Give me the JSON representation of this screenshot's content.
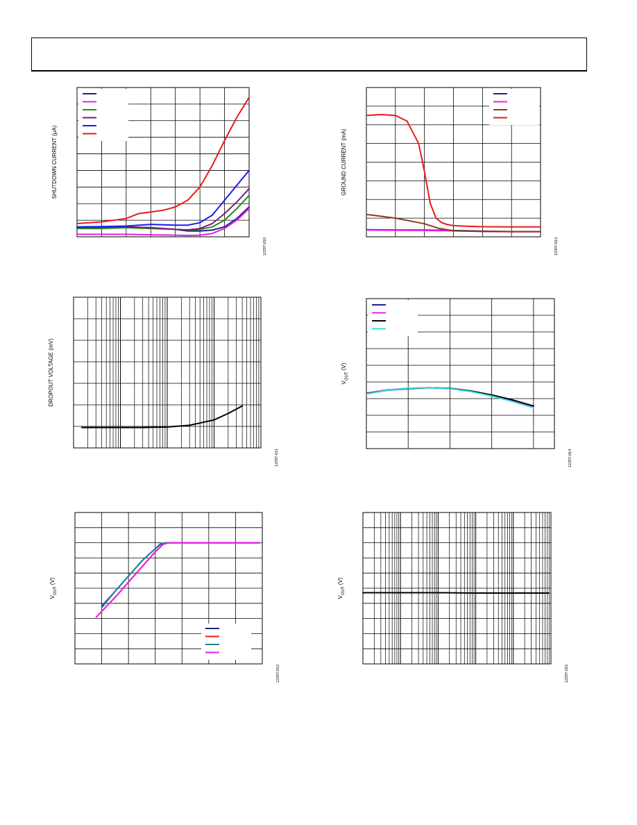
{
  "page": {
    "header_title": ""
  },
  "chart_data": [
    {
      "id": "fig10",
      "type": "line",
      "ylabel": "SHUTDOWN CURRENT (µA)",
      "figure_id": "12297-010",
      "grid": true,
      "xlim": [
        0,
        7
      ],
      "ylim": [
        0,
        9
      ],
      "x_divisions": 7,
      "y_divisions": 9,
      "legend_placement": "top-left",
      "series": [
        {
          "color": "#1f1f8f",
          "x": [
            0,
            1,
            2,
            3,
            4,
            4.5,
            5,
            5.5,
            6,
            6.5,
            7
          ],
          "y": [
            0.55,
            0.55,
            0.6,
            0.55,
            0.45,
            0.35,
            0.35,
            0.4,
            0.6,
            1.1,
            1.8
          ]
        },
        {
          "color": "#e81ee8",
          "x": [
            0,
            1,
            2,
            3,
            4,
            4.5,
            5,
            5.5,
            6,
            6.5,
            7
          ],
          "y": [
            0.15,
            0.15,
            0.15,
            0.12,
            0.1,
            0.08,
            0.1,
            0.2,
            0.5,
            1.0,
            1.7
          ]
        },
        {
          "color": "#218a21",
          "x": [
            0,
            1,
            2,
            3,
            4,
            4.5,
            5,
            5.5,
            6,
            6.5,
            7
          ],
          "y": [
            0.5,
            0.5,
            0.55,
            0.5,
            0.45,
            0.4,
            0.45,
            0.6,
            1.0,
            1.7,
            2.5
          ]
        },
        {
          "color": "#7a1a7a",
          "x": [
            0,
            1,
            2,
            3,
            4,
            4.5,
            5,
            5.5,
            6,
            6.5,
            7
          ],
          "y": [
            0.6,
            0.6,
            0.6,
            0.55,
            0.45,
            0.42,
            0.5,
            0.8,
            1.4,
            2.1,
            2.9
          ]
        },
        {
          "color": "#1a1af0",
          "x": [
            0,
            1,
            2,
            3,
            4,
            4.5,
            5,
            5.5,
            6,
            6.5,
            7
          ],
          "y": [
            0.6,
            0.62,
            0.65,
            0.75,
            0.7,
            0.7,
            0.85,
            1.3,
            2.2,
            3.1,
            4.0
          ]
        },
        {
          "color": "#e81a1a",
          "x": [
            0,
            0.5,
            1,
            1.5,
            2,
            2.5,
            3,
            3.5,
            4,
            4.5,
            5,
            5.5,
            6,
            6.5,
            7
          ],
          "y": [
            0.8,
            0.85,
            0.9,
            1.0,
            1.1,
            1.4,
            1.5,
            1.6,
            1.8,
            2.2,
            3.0,
            4.3,
            5.8,
            7.2,
            8.4
          ]
        }
      ]
    },
    {
      "id": "fig13",
      "type": "line",
      "ylabel": "GROUND CURRENT (mA)",
      "figure_id": "12297-013",
      "grid": true,
      "xlim": [
        0,
        6
      ],
      "ylim": [
        0,
        8
      ],
      "x_divisions": 6,
      "y_divisions": 8,
      "legend_placement": "top-right",
      "series": [
        {
          "color": "#1f1f8f",
          "x": [
            0,
            1,
            2,
            3,
            4,
            5,
            6
          ],
          "y": [
            0.38,
            0.37,
            0.36,
            0.34,
            0.3,
            0.28,
            0.28
          ]
        },
        {
          "color": "#e81ee8",
          "x": [
            0,
            1,
            2,
            3,
            4,
            5,
            6
          ],
          "y": [
            0.36,
            0.35,
            0.34,
            0.32,
            0.29,
            0.27,
            0.27
          ]
        },
        {
          "color": "#8b3a1a",
          "x": [
            0,
            0.5,
            1,
            1.5,
            2,
            2.5,
            3,
            3.5,
            4,
            5,
            6
          ],
          "y": [
            1.2,
            1.1,
            1.0,
            0.85,
            0.7,
            0.45,
            0.32,
            0.3,
            0.29,
            0.28,
            0.28
          ]
        },
        {
          "color": "#e81a1a",
          "x": [
            0,
            0.5,
            1,
            1.4,
            1.8,
            2.0,
            2.2,
            2.4,
            2.6,
            2.8,
            3,
            3.5,
            4,
            5,
            6
          ],
          "y": [
            6.5,
            6.55,
            6.5,
            6.2,
            5.0,
            3.5,
            1.8,
            1.0,
            0.75,
            0.65,
            0.6,
            0.56,
            0.54,
            0.53,
            0.53
          ]
        }
      ]
    },
    {
      "id": "fig11",
      "type": "line",
      "ylabel": "DROPOUT VOLTAGE (mV)",
      "figure_id": "12297-011",
      "grid": true,
      "xscale": "log",
      "xlim": [
        0.1,
        1000
      ],
      "ylim": [
        0,
        7
      ],
      "y_divisions": 7,
      "series": [
        {
          "color": "#000000",
          "x": [
            0.15,
            0.3,
            1,
            3,
            10,
            30,
            100,
            200,
            400
          ],
          "y": [
            0.95,
            0.95,
            0.95,
            0.95,
            0.97,
            1.05,
            1.3,
            1.6,
            1.95
          ]
        }
      ]
    },
    {
      "id": "fig14",
      "type": "line",
      "ylabel": "V_OUT (V)",
      "figure_id": "12297-014",
      "grid": true,
      "xlim": [
        0,
        4.5
      ],
      "ylim": [
        0,
        9
      ],
      "x_divisions": 4.5,
      "y_divisions": 9,
      "legend_placement": "top-left",
      "series": [
        {
          "color": "#1f1f8f",
          "x": [
            0,
            0.5,
            1,
            1.5,
            2,
            2.5,
            3,
            3.5,
            4
          ],
          "y": [
            3.3,
            3.5,
            3.6,
            3.65,
            3.6,
            3.45,
            3.2,
            2.9,
            2.55
          ]
        },
        {
          "color": "#e81ee8",
          "x": [
            0,
            0.5,
            1,
            1.5,
            2,
            2.5,
            3,
            3.5,
            4
          ],
          "y": [
            3.32,
            3.52,
            3.62,
            3.66,
            3.6,
            3.44,
            3.18,
            2.86,
            2.5
          ]
        },
        {
          "color": "#000000",
          "x": [
            0,
            0.5,
            1,
            1.5,
            2,
            2.5,
            3,
            3.5,
            4
          ],
          "y": [
            3.3,
            3.5,
            3.6,
            3.65,
            3.62,
            3.46,
            3.22,
            2.92,
            2.56
          ]
        },
        {
          "color": "#33dddd",
          "x": [
            0,
            0.5,
            1,
            1.5,
            2,
            2.5,
            3,
            3.5,
            4
          ],
          "y": [
            3.28,
            3.5,
            3.62,
            3.66,
            3.6,
            3.42,
            3.15,
            2.82,
            2.45
          ]
        }
      ]
    },
    {
      "id": "fig12",
      "type": "line",
      "ylabel": "V_OUT (V)",
      "figure_id": "12297-012",
      "grid": true,
      "xlim": [
        0,
        7
      ],
      "ylim": [
        0,
        10
      ],
      "x_divisions": 7,
      "y_divisions": 10,
      "legend_placement": "bottom-right",
      "series": [
        {
          "color": "#1f1f8f",
          "x": [
            1,
            1.5,
            2,
            2.5,
            3,
            3.2,
            3.4,
            4,
            5,
            6,
            6.9
          ],
          "y": [
            3.8,
            4.8,
            5.8,
            6.8,
            7.6,
            7.9,
            8.0,
            8.0,
            8.0,
            8.0,
            8.0
          ]
        },
        {
          "color": "#e81a1a",
          "x": [
            0.8,
            1.5,
            2,
            2.5,
            3,
            3.3,
            3.5,
            4,
            5,
            6,
            6.9
          ],
          "y": [
            3.1,
            4.4,
            5.4,
            6.4,
            7.4,
            7.9,
            8.0,
            8.0,
            8.0,
            8.0,
            8.0
          ]
        },
        {
          "color": "#1a8a8a",
          "x": [
            1,
            1.5,
            2,
            2.5,
            3,
            3.2,
            3.4,
            4,
            5,
            6,
            6.9
          ],
          "y": [
            3.7,
            4.8,
            5.8,
            6.8,
            7.6,
            7.95,
            8.0,
            8.0,
            8.0,
            8.0,
            8.0
          ]
        },
        {
          "color": "#e81ee8",
          "x": [
            0.8,
            1.5,
            2,
            2.5,
            3,
            3.3,
            3.5,
            4,
            5,
            6,
            6.9
          ],
          "y": [
            3.1,
            4.4,
            5.4,
            6.4,
            7.4,
            7.9,
            8.0,
            8.0,
            8.0,
            8.0,
            8.0
          ]
        }
      ]
    },
    {
      "id": "fig15",
      "type": "line",
      "ylabel": "V_OUT (V)",
      "figure_id": "12297-015",
      "grid": true,
      "xscale": "log",
      "xlim": [
        1,
        100000
      ],
      "ylim": [
        0,
        10
      ],
      "y_divisions": 10,
      "series": [
        {
          "color": "#000000",
          "x": [
            1,
            10,
            100,
            1000,
            10000,
            90000
          ],
          "y": [
            4.7,
            4.7,
            4.7,
            4.68,
            4.68,
            4.68
          ]
        }
      ]
    }
  ]
}
